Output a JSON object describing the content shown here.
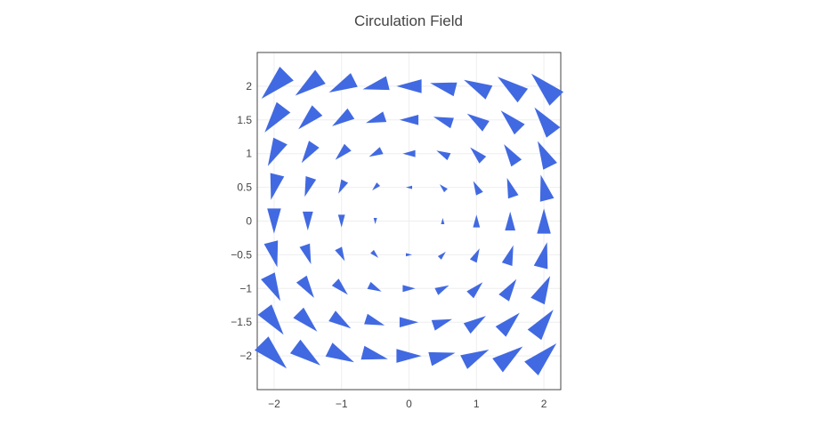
{
  "chart_data": {
    "type": "cone",
    "title": "Circulation Field",
    "xlabel": "",
    "ylabel": "",
    "xlim": [
      -2.25,
      2.25
    ],
    "ylim": [
      -2.5,
      2.5
    ],
    "x_ticks": [
      -2,
      -1,
      0,
      1,
      2
    ],
    "x_tick_labels": [
      "−2",
      "−1",
      "0",
      "1",
      "2"
    ],
    "y_ticks": [
      -2,
      -1.5,
      -1,
      -0.5,
      0,
      0.5,
      1,
      1.5,
      2
    ],
    "y_tick_labels": [
      "−2",
      "−1.5",
      "−1",
      "−0.5",
      "0",
      "0.5",
      "1",
      "1.5",
      "2"
    ],
    "grid": true,
    "legend": false,
    "color": "#4169e1",
    "x": [
      -2,
      -1.5,
      -1,
      -0.5,
      0,
      0.5,
      1,
      1.5,
      2
    ],
    "y": [
      -2,
      -1.5,
      -1,
      -0.5,
      0,
      0.5,
      1,
      1.5,
      2
    ],
    "vector_field": {
      "u": "-y",
      "v": "x"
    }
  }
}
